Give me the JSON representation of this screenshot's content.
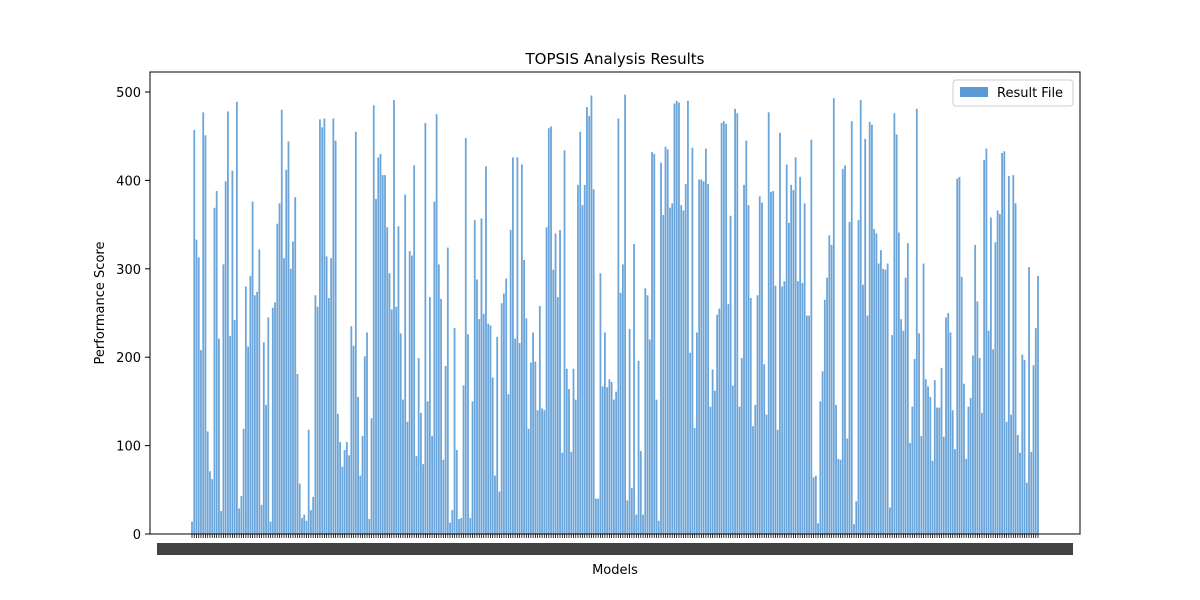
{
  "chart_data": {
    "type": "bar",
    "title": "TOPSIS Analysis Results",
    "xlabel": "Models",
    "ylabel": "Performance Score",
    "ylim": [
      0,
      520
    ],
    "yticks": [
      0,
      100,
      200,
      300,
      400,
      500
    ],
    "grid": false,
    "legend_position": "top-right",
    "color": "#5b9bd5",
    "series": [
      {
        "name": "Result File",
        "values": [
          14,
          457,
          333,
          313,
          208,
          477,
          451,
          116,
          71,
          62,
          369,
          388,
          221,
          26,
          305,
          399,
          478,
          224,
          411,
          242,
          489,
          29,
          43,
          119,
          280,
          212,
          292,
          376,
          270,
          274,
          322,
          33,
          217,
          146,
          245,
          14,
          256,
          262,
          351,
          374,
          480,
          312,
          412,
          444,
          300,
          331,
          381,
          181,
          57,
          18,
          22,
          15,
          118,
          27,
          42,
          270,
          257,
          469,
          460,
          470,
          314,
          267,
          312,
          470,
          445,
          136,
          104,
          76,
          95,
          104,
          89,
          235,
          213,
          455,
          155,
          66,
          111,
          201,
          228,
          17,
          131,
          485,
          379,
          426,
          430,
          406,
          406,
          347,
          295,
          254,
          491,
          257,
          348,
          227,
          152,
          384,
          127,
          320,
          315,
          417,
          88,
          199,
          137,
          79,
          465,
          150,
          268,
          111,
          376,
          475,
          305,
          266,
          84,
          190,
          324,
          13,
          27,
          233,
          95,
          17,
          18,
          168,
          448,
          226,
          18,
          150,
          355,
          288,
          243,
          357,
          249,
          416,
          238,
          236,
          177,
          66,
          223,
          48,
          261,
          272,
          289,
          158,
          344,
          426,
          221,
          426,
          216,
          418,
          310,
          244,
          119,
          194,
          228,
          195,
          140,
          258,
          142,
          140,
          347,
          459,
          461,
          299,
          340,
          268,
          344,
          92,
          434,
          187,
          164,
          93,
          187,
          152,
          395,
          455,
          372,
          395,
          483,
          473,
          496,
          390,
          40,
          40,
          295,
          167,
          228,
          166,
          175,
          172,
          152,
          161,
          470,
          273,
          305,
          497,
          38,
          232,
          52,
          328,
          22,
          196,
          94,
          22,
          278,
          270,
          220,
          432,
          430,
          152,
          15,
          420,
          361,
          438,
          435,
          369,
          374,
          487,
          490,
          488,
          372,
          366,
          396,
          490,
          205,
          437,
          120,
          228,
          401,
          401,
          399,
          436,
          396,
          144,
          186,
          162,
          248,
          255,
          465,
          467,
          464,
          260,
          360,
          168,
          481,
          476,
          144,
          199,
          395,
          445,
          372,
          267,
          122,
          146,
          270,
          382,
          375,
          192,
          135,
          477,
          387,
          388,
          281,
          118,
          454,
          280,
          286,
          418,
          352,
          395,
          389,
          426,
          286,
          404,
          284,
          374,
          247,
          247,
          446,
          64,
          66,
          12,
          150,
          184,
          265,
          290,
          338,
          327,
          493,
          146,
          85,
          84,
          413,
          417,
          108,
          353,
          467,
          11,
          37,
          355,
          491,
          282,
          447,
          247,
          466,
          463,
          345,
          340,
          306,
          321,
          300,
          299,
          306,
          30,
          225,
          476,
          452,
          341,
          243,
          230,
          290,
          329,
          103,
          144,
          198,
          481,
          227,
          111,
          306,
          175,
          167,
          155,
          83,
          174,
          143,
          143,
          188,
          110,
          245,
          250,
          228,
          140,
          96,
          402,
          404,
          291,
          170,
          85,
          144,
          154,
          202,
          327,
          263,
          199,
          137,
          423,
          436,
          230,
          358,
          209,
          330,
          366,
          362,
          431,
          433,
          127,
          405,
          135,
          406,
          374,
          112,
          92,
          203,
          197,
          58,
          302,
          93,
          191,
          233,
          292
        ]
      }
    ]
  }
}
